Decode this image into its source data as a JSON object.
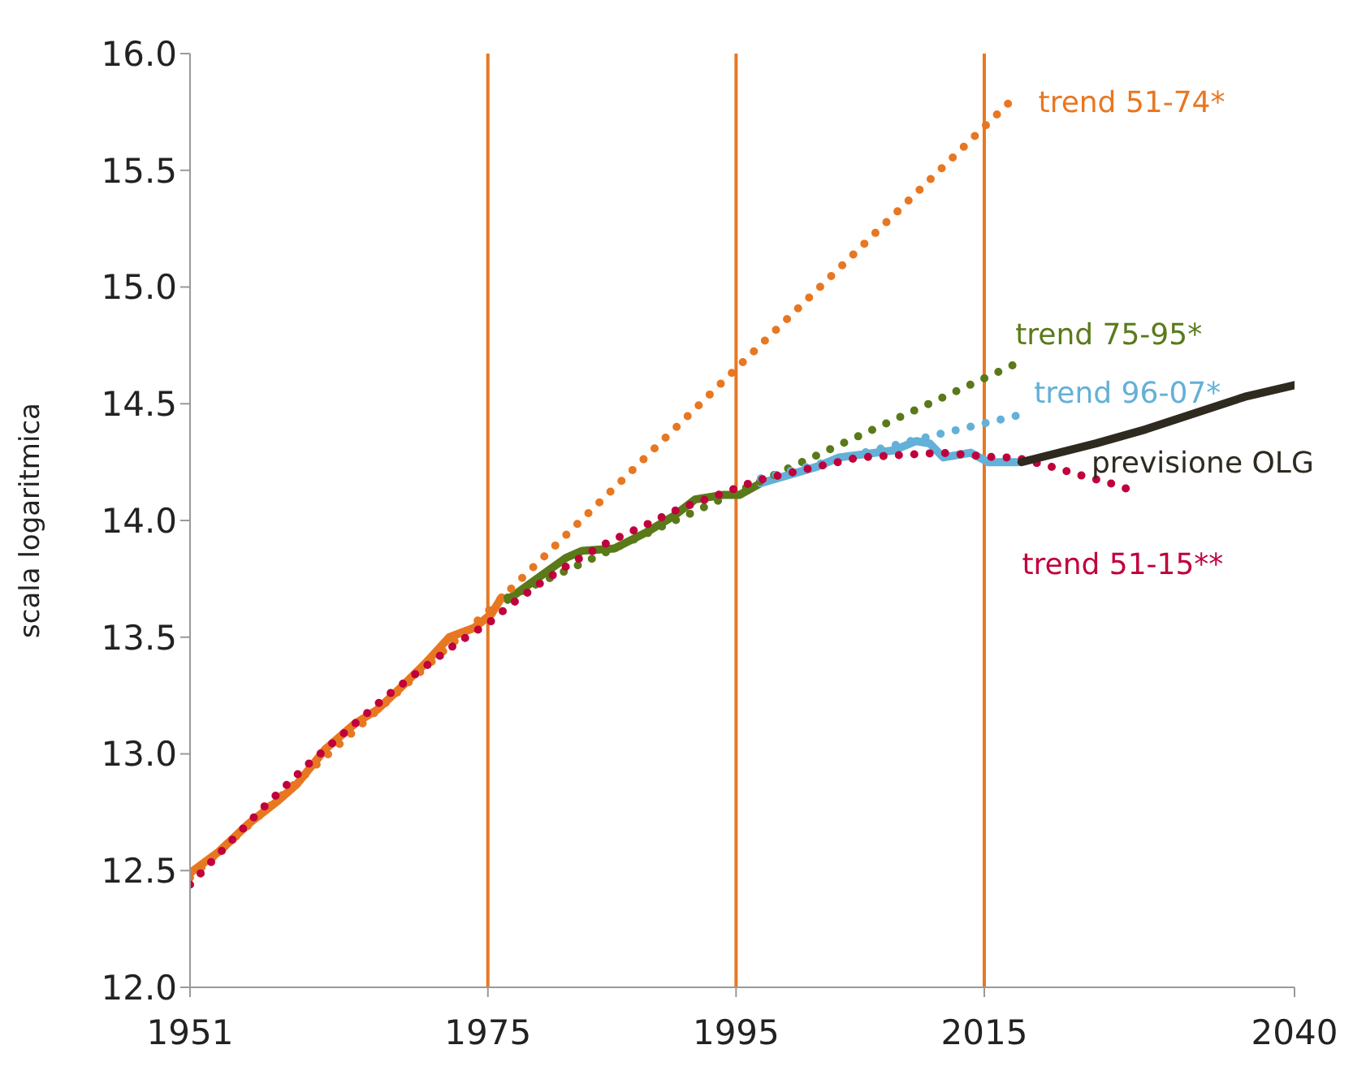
{
  "chart_data": {
    "type": "line",
    "ylabel": "scala logaritmica",
    "xlim": [
      1951,
      2040
    ],
    "xticks": [
      1951,
      1975,
      1995,
      2015,
      2040
    ],
    "ylim": [
      12,
      16
    ],
    "yticks": [
      {
        "value": 12,
        "label": "12.0"
      },
      {
        "value": 12.5,
        "label": "12.5"
      },
      {
        "value": 13,
        "label": "13.0"
      },
      {
        "value": 13.5,
        "label": "13.5"
      },
      {
        "value": 14,
        "label": "14.0"
      },
      {
        "value": 14.5,
        "label": "14.5"
      },
      {
        "value": 15,
        "label": "15.0"
      },
      {
        "value": 15.5,
        "label": "15.5"
      },
      {
        "value": 16,
        "label": "16.0"
      }
    ],
    "grid": false,
    "legend": false,
    "marker": "none",
    "ref_lines": [
      {
        "axis": "x",
        "value": 1975,
        "color": "#e87722"
      },
      {
        "axis": "x",
        "value": 1995,
        "color": "#e87722"
      },
      {
        "axis": "x",
        "value": 2015,
        "color": "#e87722"
      }
    ],
    "series": [
      {
        "color": "#e87722",
        "line_style": "solid",
        "x": [
          1951,
          1953.3,
          1955.7,
          1958.1,
          1959.6,
          1961.9,
          1964.3,
          1966.1,
          1968.1,
          1970,
          1971.9,
          1973.9,
          1975.3,
          1976.1
        ],
        "values": [
          12.49,
          12.58,
          12.7,
          12.8,
          12.87,
          13.02,
          13.13,
          13.19,
          13.29,
          13.39,
          13.5,
          13.54,
          13.6,
          13.67
        ]
      },
      {
        "color": "#5a7a1a",
        "line_style": "solid",
        "x": [
          1976.6,
          1977.9,
          1981.3,
          1982.6,
          1985.2,
          1987.8,
          1990,
          1991.7,
          1994,
          1995.3,
          1997
        ],
        "values": [
          13.66,
          13.71,
          13.84,
          13.87,
          13.88,
          13.95,
          14.02,
          14.09,
          14.11,
          14.11,
          14.16
        ]
      },
      {
        "color": "#63b0d8",
        "line_style": "solid",
        "x": [
          1997,
          2001.5,
          2003.3,
          2007.7,
          2009.5,
          2010.6,
          2011.7,
          2013.9,
          2015.3,
          2017.7
        ],
        "values": [
          14.16,
          14.23,
          14.27,
          14.3,
          14.34,
          14.33,
          14.27,
          14.29,
          14.25,
          14.25
        ]
      },
      {
        "name": "trend 51-74*",
        "color": "#e87722",
        "line_style": "dotted",
        "x": [
          1951,
          1975,
          1995,
          2017
        ],
        "values": [
          12.47,
          13.61,
          14.65,
          15.79
        ]
      },
      {
        "name": "trend 75-95*",
        "color": "#5a7a1a",
        "line_style": "dotted",
        "x": [
          1976.6,
          1995,
          2017.5
        ],
        "values": [
          13.67,
          14.12,
          14.67
        ]
      },
      {
        "name": "trend 96-07*",
        "color": "#63b0d8",
        "line_style": "dotted",
        "x": [
          1997,
          2010.6,
          2017.7
        ],
        "values": [
          14.18,
          14.36,
          14.45
        ]
      },
      {
        "name": "trend 51-15**",
        "color": "#c0003c",
        "line_style": "dotted",
        "x": [
          1951,
          1953.3,
          1956.9,
          1960.4,
          1964.3,
          1966.9,
          1969.6,
          1972.4,
          1975.3,
          1976.6,
          1979.2,
          1981.8,
          1984.8,
          1987.7,
          1990.4,
          1993.6,
          1996.6,
          2001.5,
          2004.9,
          2008.2,
          2011.5,
          2016.1,
          2017.5,
          2020.4,
          2023,
          2025.8,
          2027.2
        ],
        "values": [
          12.44,
          12.57,
          12.77,
          12.95,
          13.13,
          13.25,
          13.36,
          13.47,
          13.57,
          13.63,
          13.73,
          13.82,
          13.91,
          13.98,
          14.05,
          14.11,
          14.17,
          14.23,
          14.27,
          14.28,
          14.29,
          14.27,
          14.27,
          14.23,
          14.19,
          14.15,
          14.12
        ]
      },
      {
        "name": "previsione OLG",
        "color": "#2e2a20",
        "line_style": "solid",
        "x": [
          2018,
          2024,
          2028,
          2032,
          2036,
          2040
        ],
        "values": [
          14.25,
          14.33,
          14.39,
          14.46,
          14.53,
          14.58
        ]
      }
    ]
  }
}
